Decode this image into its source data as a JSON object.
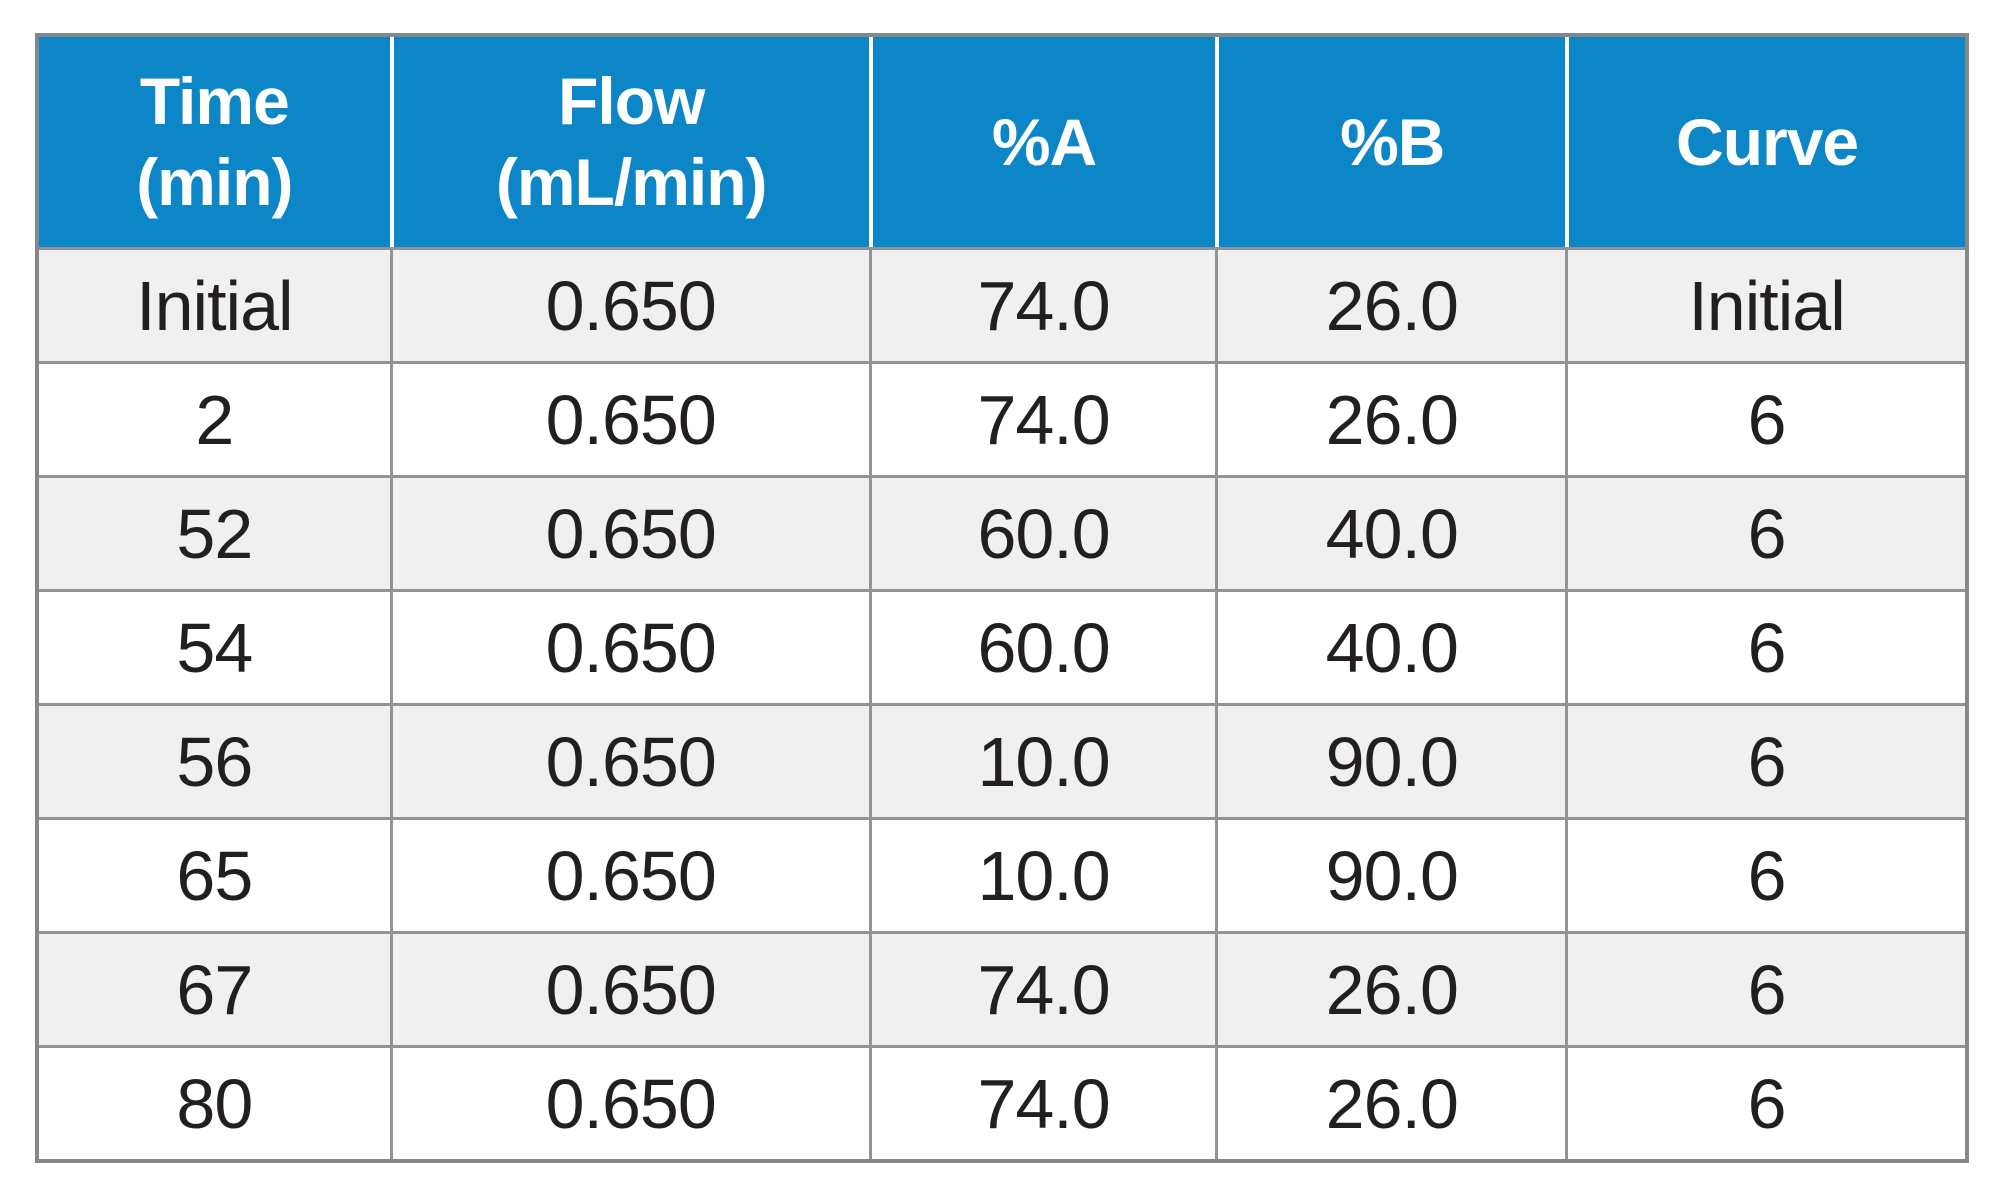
{
  "colors": {
    "header_bg": "#0d86c8",
    "header_text": "#ffffff",
    "row_stripe": "#f0f0f1",
    "row_white": "#ffffff",
    "grid_line": "#919497",
    "outer_border": "#85888b",
    "body_text": "#231f20",
    "header_divider": "#ffffff",
    "page_bg": "#ffffff"
  },
  "table": {
    "columns": [
      "Time\n(min)",
      "Flow\n(mL/min)",
      "%A",
      "%B",
      "Curve"
    ],
    "rows": [
      [
        "Initial",
        "0.650",
        "74.0",
        "26.0",
        "Initial"
      ],
      [
        "2",
        "0.650",
        "74.0",
        "26.0",
        "6"
      ],
      [
        "52",
        "0.650",
        "60.0",
        "40.0",
        "6"
      ],
      [
        "54",
        "0.650",
        "60.0",
        "40.0",
        "6"
      ],
      [
        "56",
        "0.650",
        "10.0",
        "90.0",
        "6"
      ],
      [
        "65",
        "0.650",
        "10.0",
        "90.0",
        "6"
      ],
      [
        "67",
        "0.650",
        "74.0",
        "26.0",
        "6"
      ],
      [
        "80",
        "0.650",
        "74.0",
        "26.0",
        "6"
      ]
    ]
  },
  "chart_data": {
    "type": "table",
    "title": "",
    "columns": [
      "Time (min)",
      "Flow (mL/min)",
      "%A",
      "%B",
      "Curve"
    ],
    "rows": [
      [
        "Initial",
        0.65,
        74.0,
        26.0,
        "Initial"
      ],
      [
        2,
        0.65,
        74.0,
        26.0,
        6
      ],
      [
        52,
        0.65,
        60.0,
        40.0,
        6
      ],
      [
        54,
        0.65,
        60.0,
        40.0,
        6
      ],
      [
        56,
        0.65,
        10.0,
        90.0,
        6
      ],
      [
        65,
        0.65,
        10.0,
        90.0,
        6
      ],
      [
        67,
        0.65,
        74.0,
        26.0,
        6
      ],
      [
        80,
        0.65,
        74.0,
        26.0,
        6
      ]
    ]
  }
}
